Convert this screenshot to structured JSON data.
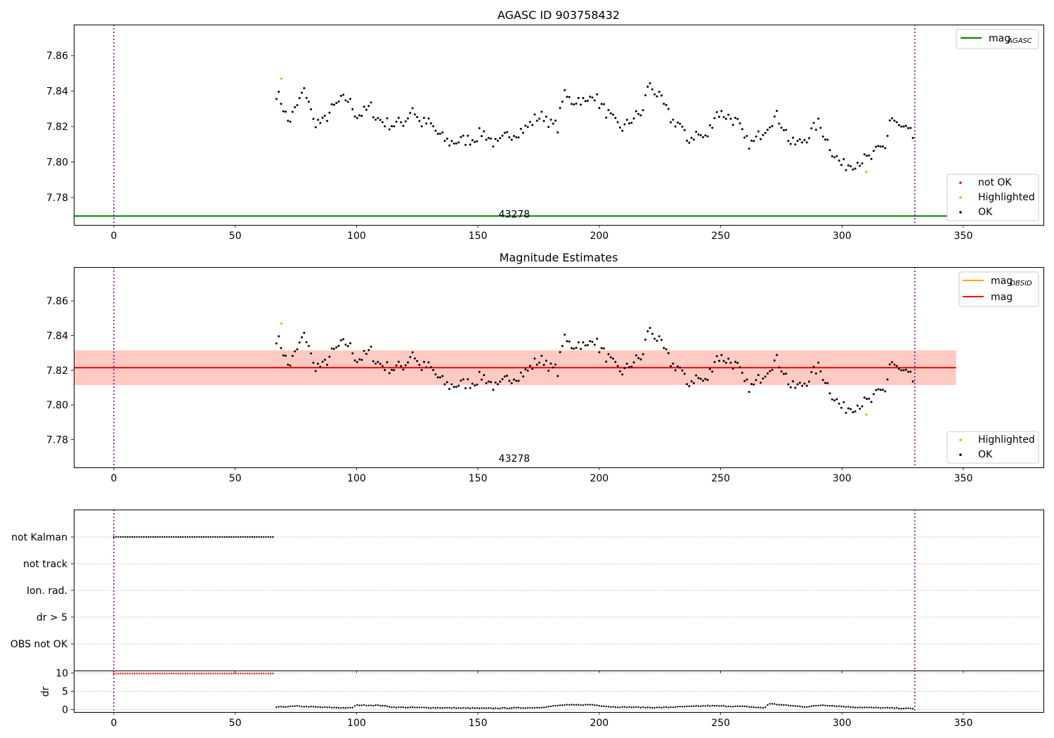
{
  "colors": {
    "ok": "#000000",
    "highlighted": "#ffa500",
    "not_ok": "#ff0000",
    "mag_agasc_line": "#008000",
    "mag_obsid_line": "#ffa500",
    "mag_line": "#ff0000",
    "band_fill": "#ffb6a0",
    "band_outer": "#ffc0cb",
    "obs_boundary": "#800080",
    "grid": "#b0b0b0"
  },
  "chart_data": [
    {
      "type": "scatter",
      "title": "AGASC ID 903758432",
      "xlim": [
        -16.5,
        383
      ],
      "ylim": [
        7.7645,
        7.8775
      ],
      "xticks": [
        0,
        50,
        100,
        150,
        200,
        250,
        300,
        350
      ],
      "yticks": [
        7.78,
        7.8,
        7.82,
        7.84,
        7.86
      ],
      "ytick_labels": [
        "7.78",
        "7.80",
        "7.82",
        "7.84",
        "7.86"
      ],
      "mag_agasc": 7.7695,
      "obs_boundaries": [
        0,
        330
      ],
      "obsid_label": "43278",
      "legend_top": [
        {
          "label": "mag",
          "sub": "AGASC",
          "color_key": "mag_agasc_line"
        }
      ],
      "legend_bottom": [
        {
          "label": "not OK",
          "color_key": "not_ok"
        },
        {
          "label": "Highlighted",
          "color_key": "highlighted"
        },
        {
          "label": "OK",
          "color_key": "ok"
        }
      ],
      "highlighted_points": [
        {
          "x": 69,
          "y": 7.847
        },
        {
          "x": 310,
          "y": 7.7945
        }
      ],
      "series_anchors": [
        [
          67,
          7.839
        ],
        [
          69,
          7.834
        ],
        [
          72,
          7.822
        ],
        [
          76,
          7.833
        ],
        [
          78,
          7.84
        ],
        [
          80,
          7.837
        ],
        [
          82,
          7.823
        ],
        [
          86,
          7.822
        ],
        [
          90,
          7.83
        ],
        [
          93,
          7.834
        ],
        [
          96,
          7.836
        ],
        [
          98,
          7.832
        ],
        [
          100,
          7.826
        ],
        [
          103,
          7.828
        ],
        [
          106,
          7.831
        ],
        [
          108,
          7.825
        ],
        [
          112,
          7.822
        ],
        [
          115,
          7.821
        ],
        [
          120,
          7.823
        ],
        [
          123,
          7.831
        ],
        [
          126,
          7.822
        ],
        [
          130,
          7.822
        ],
        [
          134,
          7.815
        ],
        [
          138,
          7.811
        ],
        [
          143,
          7.812
        ],
        [
          148,
          7.813
        ],
        [
          152,
          7.817
        ],
        [
          155,
          7.813
        ],
        [
          158,
          7.809
        ],
        [
          162,
          7.815
        ],
        [
          166,
          7.817
        ],
        [
          170,
          7.819
        ],
        [
          174,
          7.825
        ],
        [
          178,
          7.826
        ],
        [
          180,
          7.821
        ],
        [
          183,
          7.82
        ],
        [
          185,
          7.838
        ],
        [
          189,
          7.834
        ],
        [
          192,
          7.836
        ],
        [
          195,
          7.832
        ],
        [
          197,
          7.84
        ],
        [
          200,
          7.833
        ],
        [
          203,
          7.828
        ],
        [
          207,
          7.821
        ],
        [
          210,
          7.819
        ],
        [
          214,
          7.825
        ],
        [
          218,
          7.828
        ],
        [
          220,
          7.844
        ],
        [
          223,
          7.84
        ],
        [
          227,
          7.831
        ],
        [
          230,
          7.823
        ],
        [
          233,
          7.822
        ],
        [
          236,
          7.812
        ],
        [
          240,
          7.816
        ],
        [
          244,
          7.813
        ],
        [
          248,
          7.828
        ],
        [
          251,
          7.827
        ],
        [
          254,
          7.825
        ],
        [
          257,
          7.822
        ],
        [
          260,
          7.812
        ],
        [
          263,
          7.81
        ],
        [
          267,
          7.817
        ],
        [
          270,
          7.822
        ],
        [
          273,
          7.826
        ],
        [
          276,
          7.82
        ],
        [
          279,
          7.81
        ],
        [
          283,
          7.811
        ],
        [
          287,
          7.816
        ],
        [
          290,
          7.822
        ],
        [
          293,
          7.815
        ],
        [
          296,
          7.806
        ],
        [
          300,
          7.798
        ],
        [
          304,
          7.799
        ],
        [
          308,
          7.801
        ],
        [
          312,
          7.802
        ],
        [
          315,
          7.807
        ],
        [
          318,
          7.809
        ],
        [
          320,
          7.826
        ],
        [
          323,
          7.82
        ],
        [
          326,
          7.818
        ],
        [
          329,
          7.815
        ],
        [
          330,
          7.81
        ]
      ]
    },
    {
      "type": "scatter",
      "title": "Magnitude Estimates",
      "xlim": [
        -16.5,
        383
      ],
      "ylim": [
        7.764,
        7.8795
      ],
      "xticks": [
        0,
        50,
        100,
        150,
        200,
        250,
        300,
        350
      ],
      "yticks": [
        7.78,
        7.8,
        7.82,
        7.84,
        7.86
      ],
      "ytick_labels": [
        "7.78",
        "7.80",
        "7.82",
        "7.84",
        "7.86"
      ],
      "mag": 7.8215,
      "mag_band": [
        7.8115,
        7.8315
      ],
      "band_x_end": 347,
      "obs_boundaries": [
        0,
        330
      ],
      "obsid_label": "43278",
      "legend_top": [
        {
          "label": "mag",
          "sub": "OBSID",
          "color_key": "mag_obsid_line"
        },
        {
          "label": "mag",
          "sub": "",
          "color_key": "mag_line"
        }
      ],
      "legend_bottom": [
        {
          "label": "Highlighted",
          "color_key": "highlighted"
        },
        {
          "label": "OK",
          "color_key": "ok"
        }
      ]
    },
    {
      "type": "scatter",
      "categories": [
        "not Kalman",
        "not track",
        "Ion. rad.",
        "dr > 5",
        "OBS not OK"
      ],
      "xlim": [
        -16.5,
        383
      ],
      "flag_ranges": {
        "not Kalman": [
          0,
          66
        ]
      },
      "obs_boundaries": [
        0,
        330
      ]
    },
    {
      "type": "scatter",
      "ylabel": "dr",
      "xlim": [
        -16.5,
        383
      ],
      "ylim": [
        -0.7,
        10.7
      ],
      "yticks": [
        0,
        5,
        10
      ],
      "ytick_labels": [
        "0",
        "5",
        "10"
      ],
      "xticks": [
        0,
        50,
        100,
        150,
        200,
        250,
        300,
        350
      ],
      "clipped_range": [
        0,
        66
      ],
      "clipped_value": 10,
      "dr_anchors": [
        [
          67,
          0.6
        ],
        [
          75,
          0.9
        ],
        [
          85,
          0.6
        ],
        [
          98,
          0.4
        ],
        [
          100,
          1.2
        ],
        [
          110,
          1.1
        ],
        [
          115,
          0.6
        ],
        [
          140,
          0.4
        ],
        [
          155,
          0.3
        ],
        [
          175,
          0.5
        ],
        [
          185,
          1.2
        ],
        [
          197,
          1.3
        ],
        [
          205,
          0.7
        ],
        [
          225,
          0.5
        ],
        [
          245,
          1.0
        ],
        [
          260,
          0.8
        ],
        [
          268,
          0.4
        ],
        [
          270,
          1.6
        ],
        [
          276,
          1.2
        ],
        [
          285,
          0.7
        ],
        [
          292,
          1.2
        ],
        [
          305,
          0.6
        ],
        [
          320,
          0.4
        ],
        [
          330,
          0.2
        ]
      ],
      "obs_boundaries": [
        0,
        330
      ]
    }
  ]
}
